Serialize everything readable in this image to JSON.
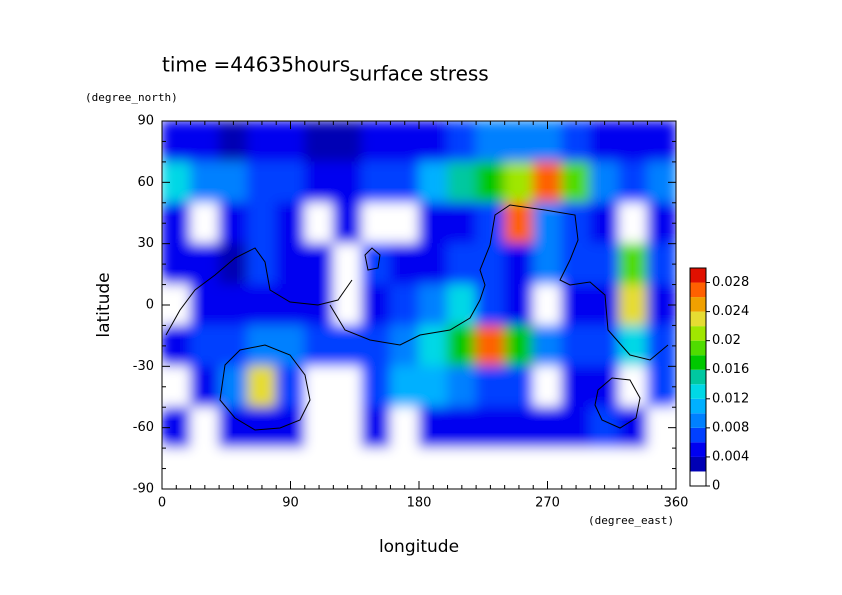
{
  "chart_data": {
    "type": "heatmap",
    "title": "surface stress",
    "subtitle": "time =44635hours",
    "x_label": "longitude",
    "x_unit": "(degree_east)",
    "y_label": "latitude",
    "y_unit": "(degree_north)",
    "xlim": [
      0,
      360
    ],
    "ylim": [
      -90,
      90
    ],
    "xticks": [
      0,
      90,
      180,
      270,
      360
    ],
    "yticks": [
      -90,
      -60,
      -30,
      0,
      30,
      60,
      90
    ],
    "x": [
      10,
      30,
      50,
      70,
      90,
      110,
      130,
      150,
      170,
      190,
      210,
      230,
      250,
      270,
      290,
      310,
      330,
      350
    ],
    "y": [
      80,
      60,
      40,
      20,
      0,
      -20,
      -40,
      -60,
      -80
    ],
    "z": [
      [
        0.004,
        0.004,
        0.003,
        0.004,
        0.004,
        0.003,
        0.003,
        0.004,
        0.004,
        0.004,
        0.006,
        0.008,
        0.008,
        0.008,
        0.006,
        0.004,
        0.004,
        0.004
      ],
      [
        0.012,
        0.008,
        0.008,
        0.006,
        0.006,
        0.005,
        0.005,
        0.006,
        0.007,
        0.01,
        0.014,
        0.016,
        0.02,
        0.026,
        0.018,
        0.008,
        0.006,
        0.008
      ],
      [
        0.004,
        0,
        0.004,
        0.006,
        0.004,
        0,
        0.004,
        0,
        0,
        0.004,
        0.004,
        0.006,
        0.026,
        0.008,
        0.006,
        0.004,
        0,
        0.004
      ],
      [
        0.004,
        0.004,
        0.003,
        0.006,
        0.004,
        0.004,
        0,
        0.006,
        0.004,
        0.004,
        0.006,
        0.006,
        0.004,
        0.008,
        0.006,
        0.006,
        0.018,
        0.006
      ],
      [
        0,
        0.004,
        0.004,
        0.004,
        0.004,
        0.004,
        0,
        0.004,
        0.006,
        0.008,
        0.012,
        0.006,
        0.004,
        0,
        0.004,
        0.004,
        0.022,
        0.004
      ],
      [
        0.004,
        0.006,
        0.006,
        0.008,
        0.008,
        0.006,
        0.006,
        0.006,
        0.008,
        0.012,
        0.016,
        0.026,
        0.016,
        0.008,
        0.006,
        0.006,
        0.012,
        0.006
      ],
      [
        0,
        0.004,
        0.008,
        0.022,
        0.006,
        0,
        0,
        0.006,
        0.01,
        0.01,
        0.008,
        0.006,
        0.006,
        0,
        0.004,
        0.004,
        0,
        0.006
      ],
      [
        0.004,
        0,
        0.004,
        0.004,
        0.004,
        0,
        0,
        0.004,
        0,
        0.004,
        0.004,
        0.004,
        0.004,
        0.004,
        0.004,
        0.006,
        0.004,
        0
      ],
      [
        0,
        0,
        0,
        0,
        0,
        0,
        0,
        0,
        0,
        0,
        0,
        0,
        0,
        0,
        0,
        0,
        0,
        0
      ]
    ],
    "zlim": [
      0,
      0.03
    ],
    "zticks": [
      0,
      0.004,
      0.008,
      0.012,
      0.016,
      0.02,
      0.024,
      0.028
    ],
    "colors": [
      "#ffffff",
      "#0000b4",
      "#0000f0",
      "#0040ff",
      "#0080ff",
      "#00b0ff",
      "#00d8e6",
      "#00c8a0",
      "#00c800",
      "#50dc00",
      "#a0e600",
      "#e6dc32",
      "#f0a000",
      "#ff6000",
      "#e01000"
    ]
  }
}
